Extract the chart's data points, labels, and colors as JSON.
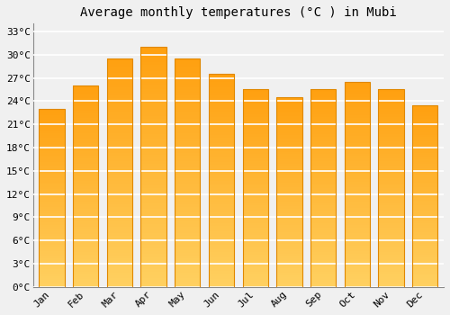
{
  "title": "Average monthly temperatures (°C ) in Mubi",
  "months": [
    "Jan",
    "Feb",
    "Mar",
    "Apr",
    "May",
    "Jun",
    "Jul",
    "Aug",
    "Sep",
    "Oct",
    "Nov",
    "Dec"
  ],
  "values": [
    23.0,
    26.0,
    29.5,
    31.0,
    29.5,
    27.5,
    25.5,
    24.5,
    25.5,
    26.5,
    25.5,
    23.5
  ],
  "bar_color_bottom": "#FFD060",
  "bar_color_top": "#FFA010",
  "bar_edge_color": "#E08800",
  "background_color": "#f0f0f0",
  "grid_color": "#ffffff",
  "ylim": [
    0,
    34
  ],
  "yticks": [
    0,
    3,
    6,
    9,
    12,
    15,
    18,
    21,
    24,
    27,
    30,
    33
  ],
  "ytick_labels": [
    "0°C",
    "3°C",
    "6°C",
    "9°C",
    "12°C",
    "15°C",
    "18°C",
    "21°C",
    "24°C",
    "27°C",
    "30°C",
    "33°C"
  ],
  "title_fontsize": 10,
  "tick_fontsize": 8,
  "font_family": "monospace"
}
